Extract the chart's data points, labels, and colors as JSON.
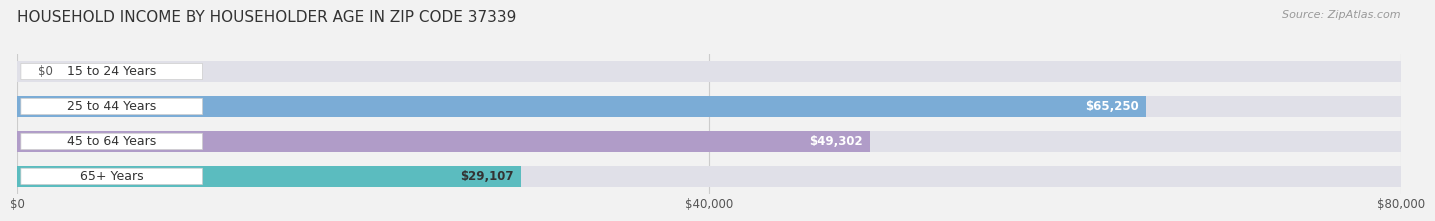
{
  "title": "HOUSEHOLD INCOME BY HOUSEHOLDER AGE IN ZIP CODE 37339",
  "source": "Source: ZipAtlas.com",
  "categories": [
    "15 to 24 Years",
    "25 to 44 Years",
    "45 to 64 Years",
    "65+ Years"
  ],
  "values": [
    0,
    65250,
    49302,
    29107
  ],
  "bar_colors": [
    "#f4a0a8",
    "#7bacd6",
    "#b09cc8",
    "#5bbcbf"
  ],
  "value_label_colors": [
    "#555555",
    "#ffffff",
    "#ffffff",
    "#333333"
  ],
  "xlim": [
    0,
    80000
  ],
  "xtick_labels": [
    "$0",
    "$40,000",
    "$80,000"
  ],
  "xtick_values": [
    0,
    40000,
    80000
  ],
  "bar_height": 0.62,
  "background_color": "#f2f2f2",
  "bar_bg_color": "#e0e0e8",
  "title_fontsize": 11,
  "source_fontsize": 8,
  "label_fontsize": 8.5,
  "cat_fontsize": 9,
  "value_labels": [
    "$0",
    "$65,250",
    "$49,302",
    "$29,107"
  ]
}
